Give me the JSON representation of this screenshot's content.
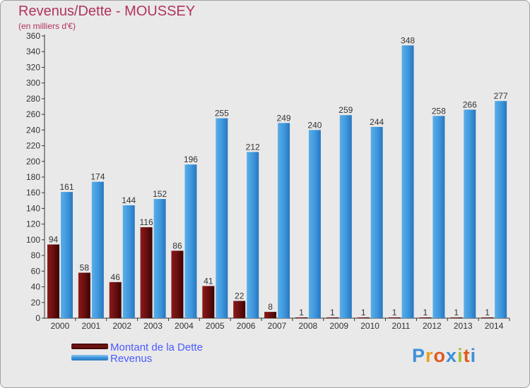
{
  "header": {
    "title": "Revenus/Dette - MOUSSEY",
    "subtitle": "(en milliers d'€)"
  },
  "chart_data": {
    "type": "bar",
    "title": "Revenus/Dette - MOUSSEY",
    "subtitle": "(en milliers d'€)",
    "categories": [
      "2000",
      "2001",
      "2002",
      "2003",
      "2004",
      "2005",
      "2006",
      "2007",
      "2008",
      "2009",
      "2010",
      "2011",
      "2012",
      "2013",
      "2014"
    ],
    "series": [
      {
        "name": "Montant de la Dette",
        "color": "#7a1414",
        "values": [
          94,
          58,
          46,
          116,
          86,
          41,
          22,
          8,
          1,
          1,
          1,
          1,
          1,
          1,
          1
        ]
      },
      {
        "name": "Revenus",
        "color": "#3d96dc",
        "values": [
          161,
          174,
          144,
          152,
          196,
          255,
          212,
          249,
          240,
          259,
          244,
          348,
          258,
          266,
          277
        ]
      }
    ],
    "ylim": [
      0,
      360
    ],
    "ytick_step": 20,
    "grid": false,
    "legend_position": "bottom-left"
  },
  "legend": {
    "items": [
      {
        "label": "Montant de la Dette",
        "color": "#7a1414"
      },
      {
        "label": "Revenus",
        "color": "#3d96dc"
      }
    ]
  },
  "logo": {
    "text": "Proxiti",
    "colors": [
      "#3d8fd8",
      "#e8a020",
      "#e05a20",
      "#3d8fd8",
      "#a0c030",
      "#e05a20",
      "#3d8fd8"
    ]
  }
}
